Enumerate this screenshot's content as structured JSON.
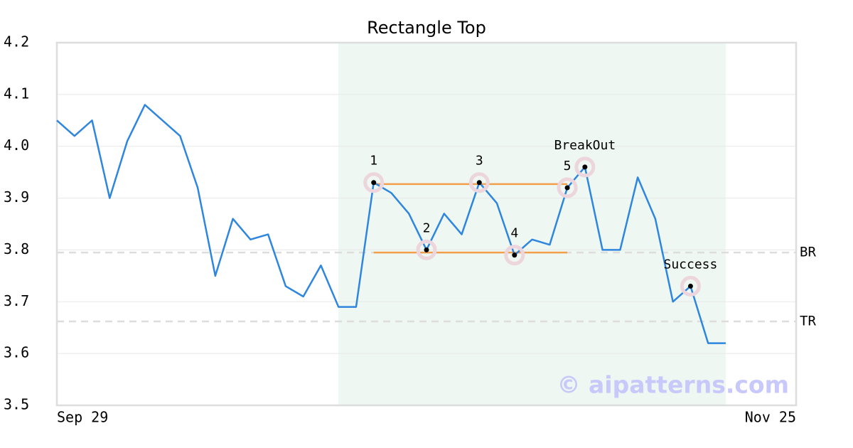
{
  "chart_data": {
    "type": "line",
    "title": "Rectangle Top",
    "categories": [
      "Sep 29",
      null,
      null,
      null,
      null,
      null,
      null,
      null,
      null,
      null,
      null,
      null,
      null,
      null,
      null,
      null,
      null,
      null,
      null,
      null,
      null,
      null,
      null,
      null,
      null,
      null,
      null,
      null,
      null,
      null,
      null,
      null,
      null,
      null,
      null,
      null,
      null,
      null,
      null,
      null,
      null,
      null,
      "Nov 25"
    ],
    "values": [
      4.05,
      4.02,
      4.05,
      3.9,
      4.01,
      4.08,
      4.05,
      4.02,
      3.92,
      3.75,
      3.86,
      3.82,
      3.83,
      3.73,
      3.71,
      3.77,
      3.69,
      3.69,
      3.93,
      3.91,
      3.87,
      3.8,
      3.87,
      3.83,
      3.93,
      3.89,
      3.79,
      3.82,
      3.81,
      3.92,
      3.96,
      3.8,
      3.8,
      3.94,
      3.86,
      3.7,
      3.73,
      3.62,
      3.62,
      null,
      null,
      null,
      null
    ],
    "color": "#2e86de",
    "ylim": [
      3.5,
      4.2
    ],
    "yticks": [
      3.5,
      3.6,
      3.7,
      3.8,
      3.9,
      {
        "value": 4,
        "label": "4.0"
      },
      4.1,
      4.2
    ],
    "grid": true,
    "highlight_range": [
      16,
      38
    ],
    "pattern_lines": [
      {
        "value": 3.927,
        "from": 18,
        "to": 29,
        "color": "#f29f4b"
      },
      {
        "value": 3.795,
        "from": 18,
        "to": 29,
        "color": "#f29f4b"
      }
    ],
    "levels": [
      {
        "label": "BR",
        "value": 3.795
      },
      {
        "label": "TR",
        "value": 3.662
      }
    ],
    "points": [
      {
        "label": "1",
        "index": 18
      },
      {
        "label": "2",
        "index": 21
      },
      {
        "label": "3",
        "index": 24
      },
      {
        "label": "4",
        "index": 26
      },
      {
        "label": "5",
        "index": 29
      },
      {
        "label": "BreakOut",
        "index": 30
      },
      {
        "label": "Success",
        "index": 36
      }
    ],
    "watermark": "© aipatterns.com"
  }
}
